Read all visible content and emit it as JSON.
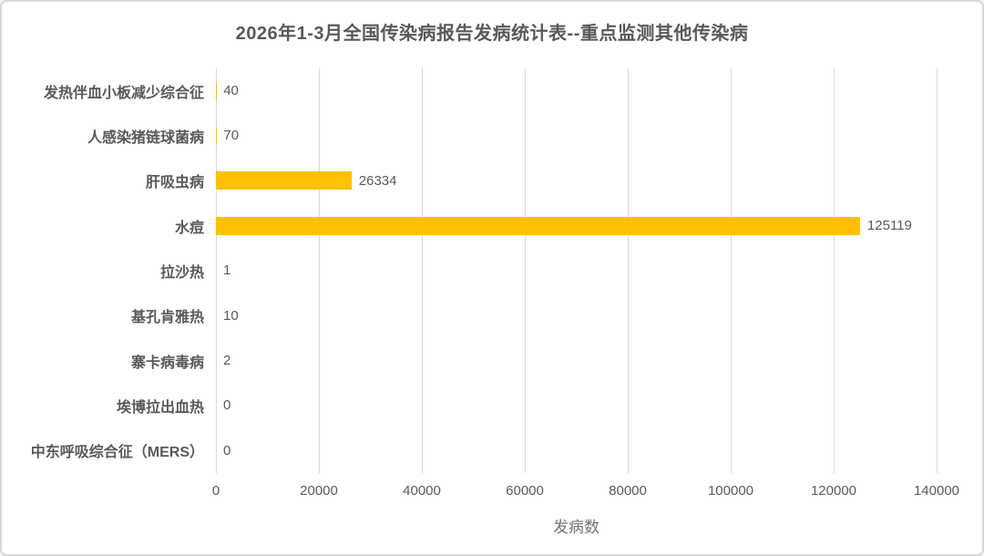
{
  "title": "2026年1-3月全国传染病报告发病统计表--重点监测其他传染病",
  "chart_data": {
    "type": "bar",
    "orientation": "horizontal",
    "title": "2026年1-3月全国传染病报告发病统计表--重点监测其他传染病",
    "categories": [
      "发热伴血小板减少综合征",
      "人感染猪链球菌病",
      "肝吸虫病",
      "水痘",
      "拉沙热",
      "基孔肯雅热",
      "寨卡病毒病",
      "埃博拉出血热",
      "中东呼吸综合征（MERS）"
    ],
    "values": [
      40,
      70,
      26334,
      125119,
      1,
      10,
      2,
      0,
      0
    ],
    "data_labels": [
      "40",
      "70",
      "26334",
      "125119",
      "1",
      "10",
      "2",
      "0",
      "0"
    ],
    "xlabel": "发病数",
    "ylabel": "",
    "xlim": [
      0,
      140000
    ],
    "x_ticks": [
      0,
      20000,
      40000,
      60000,
      80000,
      100000,
      120000,
      140000
    ],
    "grid": "vertical-gridlines",
    "legend": "none"
  },
  "colors": {
    "bar": "#FFC000",
    "title_text": "#595959",
    "category_text": "#595959",
    "value_text": "#595959",
    "tick_text": "#595959",
    "gridline": "#D9D9D9",
    "frame_border": "#D6D6D6",
    "background": "#FFFFFF"
  }
}
